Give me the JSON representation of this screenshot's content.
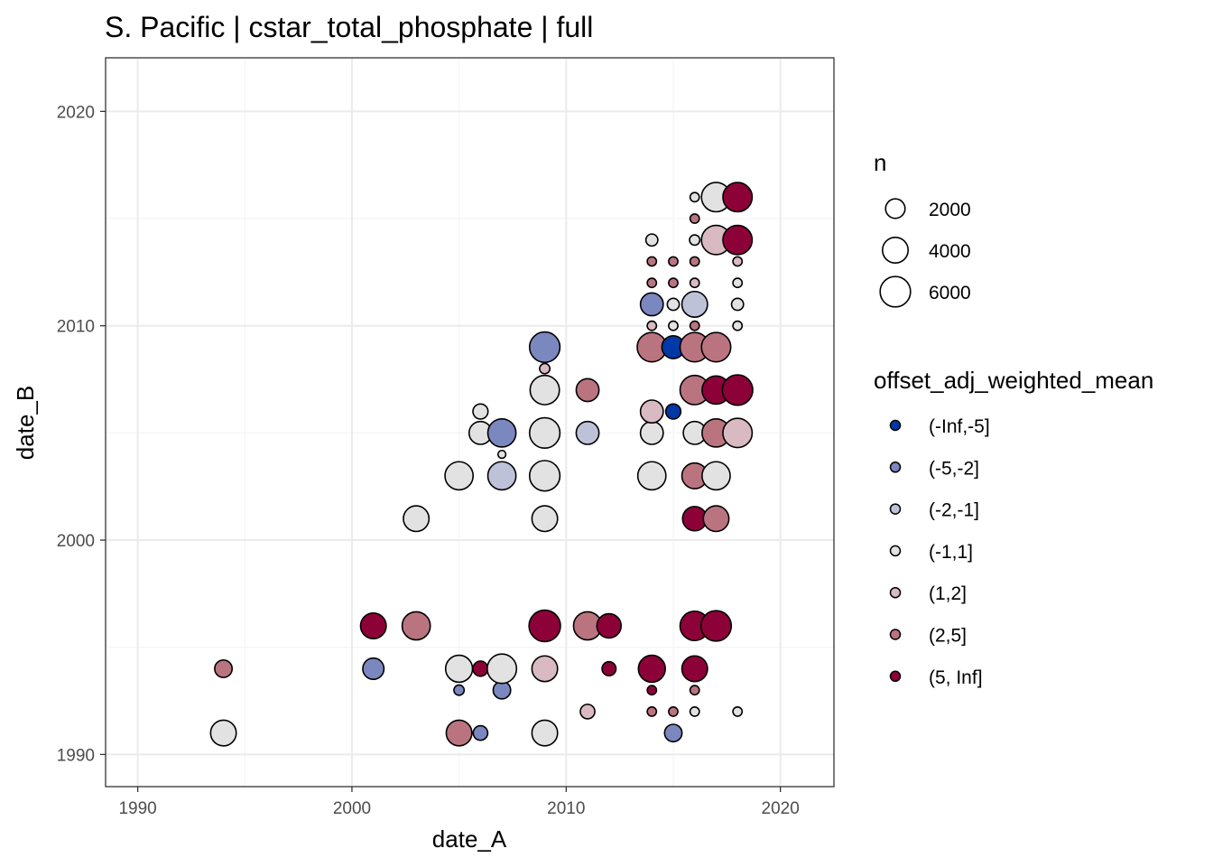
{
  "chart_data": {
    "type": "scatter",
    "title": "S. Pacific | cstar_total_phosphate | full",
    "xlabel": "date_A",
    "ylabel": "date_B",
    "xlim": [
      1988.5,
      2022.5
    ],
    "ylim": [
      1988.5,
      2022.5
    ],
    "xticks": [
      1990,
      2000,
      2010,
      2020
    ],
    "yticks": [
      1990,
      2000,
      2010,
      2020
    ],
    "grid": true,
    "legend_placement": "right",
    "size_legend": {
      "title": "n",
      "values": [
        2000,
        4000,
        6000
      ]
    },
    "color_legend": {
      "title": "offset_adj_weighted_mean",
      "categories": [
        "(-Inf,-5]",
        "(-5,-2]",
        "(-2,-1]",
        "(-1,1]",
        "(1,2]",
        "(2,5]",
        "(5, Inf]"
      ],
      "colors": [
        "#0039A6",
        "#7B87BF",
        "#BEC2D9",
        "#E2E2E2",
        "#D9BAC2",
        "#BA7480",
        "#8C0238"
      ]
    },
    "point_fields": [
      "date_A",
      "date_B",
      "n",
      "offset_category_index"
    ],
    "points": [
      [
        1994,
        1991,
        4000,
        3
      ],
      [
        2005,
        1991,
        4000,
        5
      ],
      [
        2006,
        1991,
        900,
        1
      ],
      [
        2009,
        1991,
        4000,
        3
      ],
      [
        2015,
        1991,
        1500,
        1
      ],
      [
        2011,
        1992,
        900,
        4
      ],
      [
        2014,
        1992,
        200,
        5
      ],
      [
        2015,
        1992,
        200,
        5
      ],
      [
        2016,
        1992,
        200,
        3
      ],
      [
        2018,
        1992,
        200,
        3
      ],
      [
        2005,
        1993,
        300,
        1
      ],
      [
        2007,
        1993,
        1500,
        1
      ],
      [
        2014,
        1993,
        200,
        6
      ],
      [
        2016,
        1993,
        200,
        5
      ],
      [
        1994,
        1994,
        1500,
        5
      ],
      [
        2001,
        1994,
        2500,
        1
      ],
      [
        2005,
        1994,
        4500,
        3
      ],
      [
        2006,
        1994,
        1000,
        6
      ],
      [
        2007,
        1994,
        5500,
        3
      ],
      [
        2009,
        1994,
        4000,
        4
      ],
      [
        2012,
        1994,
        800,
        6
      ],
      [
        2014,
        1994,
        4500,
        6
      ],
      [
        2016,
        1994,
        4000,
        6
      ],
      [
        2001,
        1996,
        4000,
        6
      ],
      [
        2003,
        1996,
        5000,
        5
      ],
      [
        2009,
        1996,
        6500,
        6
      ],
      [
        2011,
        1996,
        5000,
        5
      ],
      [
        2012,
        1996,
        3500,
        6
      ],
      [
        2016,
        1996,
        5500,
        6
      ],
      [
        2017,
        1996,
        6000,
        6
      ],
      [
        2003,
        2001,
        4000,
        3
      ],
      [
        2009,
        2001,
        4000,
        3
      ],
      [
        2016,
        2001,
        3500,
        6
      ],
      [
        2017,
        2001,
        4000,
        5
      ],
      [
        2005,
        2003,
        5000,
        3
      ],
      [
        2007,
        2003,
        5000,
        2
      ],
      [
        2009,
        2003,
        6000,
        3
      ],
      [
        2014,
        2003,
        5000,
        3
      ],
      [
        2016,
        2003,
        4000,
        5
      ],
      [
        2017,
        2003,
        5000,
        3
      ],
      [
        2007,
        2004,
        100,
        3
      ],
      [
        2006,
        2005,
        3000,
        3
      ],
      [
        2007,
        2005,
        5000,
        1
      ],
      [
        2009,
        2005,
        6000,
        3
      ],
      [
        2011,
        2005,
        3000,
        2
      ],
      [
        2014,
        2005,
        3000,
        3
      ],
      [
        2016,
        2005,
        3000,
        3
      ],
      [
        2017,
        2005,
        5000,
        5
      ],
      [
        2018,
        2005,
        5500,
        4
      ],
      [
        2006,
        2006,
        1000,
        3
      ],
      [
        2014,
        2006,
        3000,
        4
      ],
      [
        2015,
        2006,
        1000,
        0
      ],
      [
        2009,
        2007,
        5500,
        3
      ],
      [
        2011,
        2007,
        3000,
        5
      ],
      [
        2016,
        2007,
        5500,
        5
      ],
      [
        2017,
        2007,
        5000,
        6
      ],
      [
        2018,
        2007,
        6000,
        6
      ],
      [
        2009,
        2008,
        300,
        4
      ],
      [
        2009,
        2009,
        6000,
        1
      ],
      [
        2014,
        2009,
        5500,
        5
      ],
      [
        2015,
        2009,
        3000,
        0
      ],
      [
        2016,
        2009,
        5500,
        5
      ],
      [
        2017,
        2009,
        5500,
        5
      ],
      [
        2014,
        2010,
        200,
        4
      ],
      [
        2015,
        2010,
        200,
        3
      ],
      [
        2016,
        2010,
        200,
        5
      ],
      [
        2018,
        2010,
        200,
        3
      ],
      [
        2014,
        2011,
        3000,
        1
      ],
      [
        2015,
        2011,
        500,
        3
      ],
      [
        2016,
        2011,
        4000,
        2
      ],
      [
        2018,
        2011,
        500,
        3
      ],
      [
        2014,
        2012,
        200,
        5
      ],
      [
        2015,
        2012,
        200,
        5
      ],
      [
        2016,
        2012,
        200,
        4
      ],
      [
        2018,
        2012,
        200,
        3
      ],
      [
        2014,
        2013,
        200,
        5
      ],
      [
        2015,
        2013,
        200,
        5
      ],
      [
        2016,
        2013,
        200,
        5
      ],
      [
        2018,
        2013,
        200,
        4
      ],
      [
        2014,
        2014,
        500,
        3
      ],
      [
        2016,
        2014,
        300,
        3
      ],
      [
        2017,
        2014,
        5500,
        4
      ],
      [
        2018,
        2014,
        5500,
        6
      ],
      [
        2016,
        2015,
        200,
        5
      ],
      [
        2016,
        2016,
        200,
        3
      ],
      [
        2017,
        2016,
        5500,
        3
      ],
      [
        2018,
        2016,
        5500,
        6
      ]
    ]
  }
}
